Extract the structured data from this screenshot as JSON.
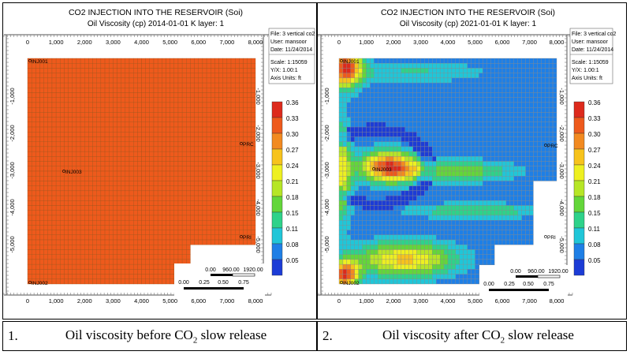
{
  "chart_data": [
    {
      "type": "heatmap",
      "title": "CO2 INJECTION INTO THE RESERVOIR (Soi)",
      "subtitle": "Oil Viscosity (cp) 2014-01-01    K layer: 1",
      "info": [
        "File: 3 vertical co2",
        "User: mansoor",
        "Date: 11/24/2014",
        "Scale: 1:15059",
        "Y/X: 1.00:1",
        "Axis Units: ft"
      ],
      "x_ticks": [
        "0",
        "1,000",
        "2,000",
        "3,000",
        "4,000",
        "5,000",
        "6,000",
        "7,000",
        "8,000"
      ],
      "y_ticks": [
        "-1,000",
        "-2,000",
        "-3,000",
        "-4,000",
        "-5,000"
      ],
      "colorbar": [
        "0.36",
        "0.33",
        "0.30",
        "0.27",
        "0.24",
        "0.21",
        "0.18",
        "0.15",
        "0.11",
        "0.08",
        "0.05"
      ],
      "scalebar_ft": [
        "0.00",
        "960.00",
        "1920.00"
      ],
      "scalebar_miles": [
        "0.00",
        "0.25",
        "0.50",
        "0.75"
      ],
      "wells": [
        "INJ001",
        "INJ003",
        "INJ002",
        "PRC",
        "PRI"
      ],
      "uniform_value": 0.315
    },
    {
      "type": "heatmap",
      "title": "CO2 INJECTION INTO THE RESERVOIR (Soi)",
      "subtitle": "Oil Viscosity (cp) 2021-01-01    K layer: 1",
      "info": [
        "File: 3 vertical co2",
        "User: mansoor",
        "Date: 11/24/2014",
        "Scale: 1:15059",
        "Y/X: 1.00:1",
        "Axis Units: ft"
      ],
      "x_ticks": [
        "0",
        "1,000",
        "2,000",
        "3,000",
        "4,000",
        "5,000",
        "6,000",
        "7,000",
        "8,000"
      ],
      "y_ticks": [
        "-1,000",
        "-2,000",
        "-3,000",
        "-4,000",
        "-5,000"
      ],
      "colorbar": [
        "0.36",
        "0.33",
        "0.30",
        "0.27",
        "0.24",
        "0.21",
        "0.18",
        "0.15",
        "0.11",
        "0.08",
        "0.05"
      ],
      "scalebar_ft": [
        "0.00",
        "960.00",
        "1920.00"
      ],
      "scalebar_miles": [
        "0.00",
        "0.25",
        "0.50",
        "0.75"
      ],
      "wells": [
        "INJ001",
        "INJ003",
        "INJ002",
        "PRC",
        "PRI"
      ]
    }
  ],
  "captions": [
    {
      "num": "1.",
      "text_pre": "Oil viscosity before CO",
      "sub": "2",
      "text_post": " slow release"
    },
    {
      "num": "2.",
      "text_pre": "Oil viscosity after CO",
      "sub": "2",
      "text_post": " slow release"
    }
  ],
  "colors": {
    "colorbar": [
      "#dd2a1c",
      "#ee5a1c",
      "#f28a20",
      "#f7c31c",
      "#eef020",
      "#b6e626",
      "#63d63a",
      "#2ed28a",
      "#20c6d8",
      "#1e7fe6",
      "#1c3cd6"
    ]
  }
}
